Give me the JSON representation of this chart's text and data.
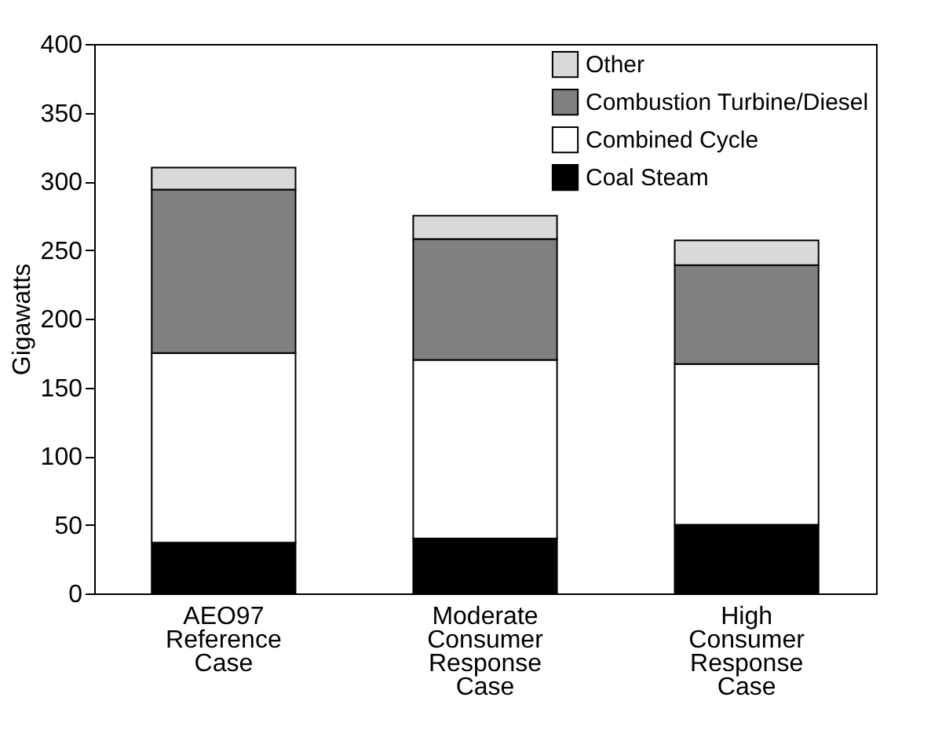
{
  "chart_data": {
    "type": "bar",
    "stacked": true,
    "ylabel": "Gigawatts",
    "categories": [
      "AEO97 Reference Case",
      "Moderate Consumer Response Case",
      "High Consumer Response Case"
    ],
    "series": [
      {
        "name": "Coal Steam",
        "color": "#000000",
        "values": [
          37,
          40,
          50
        ]
      },
      {
        "name": "Combined Cycle",
        "color": "#ffffff",
        "values": [
          138,
          130,
          117
        ]
      },
      {
        "name": "Combustion Turbine/Diesel",
        "color": "#808080",
        "values": [
          119,
          88,
          72
        ]
      },
      {
        "name": "Other",
        "color": "#d9d9d9",
        "values": [
          16,
          17,
          18
        ]
      }
    ],
    "ylim": [
      0,
      400
    ],
    "yticks": [
      0,
      50,
      100,
      150,
      200,
      250,
      300,
      350,
      400
    ],
    "grid": false,
    "legend": "top right"
  }
}
